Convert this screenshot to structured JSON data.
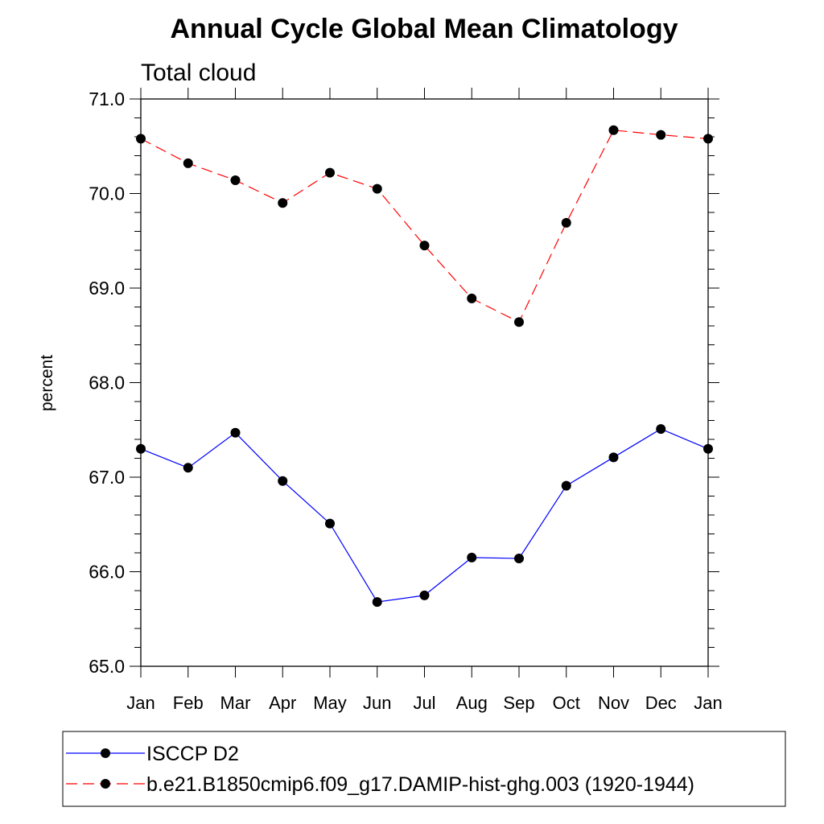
{
  "chart_data": {
    "type": "line",
    "title": "Annual Cycle Global Mean Climatology",
    "subtitle": "Total cloud",
    "xlabel": "",
    "ylabel": "percent",
    "categories": [
      "Jan",
      "Feb",
      "Mar",
      "Apr",
      "May",
      "Jun",
      "Jul",
      "Aug",
      "Sep",
      "Oct",
      "Nov",
      "Dec",
      "Jan"
    ],
    "ylim": [
      65.0,
      71.0
    ],
    "yticks": [
      "65.0",
      "66.0",
      "67.0",
      "68.0",
      "69.0",
      "70.0",
      "71.0"
    ],
    "grid": false,
    "legend_position": "bottom",
    "series": [
      {
        "name": "ISCCP D2",
        "color": "#0000ff",
        "dashed": false,
        "marker": "filled-circle",
        "values": [
          67.3,
          67.1,
          67.47,
          66.96,
          66.51,
          65.68,
          65.75,
          66.15,
          66.14,
          66.91,
          67.21,
          67.51,
          67.3
        ]
      },
      {
        "name": "b.e21.B1850cmip6.f09_g17.DAMIP-hist-ghg.003 (1920-1944)",
        "color": "#ff0000",
        "dashed": true,
        "marker": "filled-circle",
        "values": [
          70.58,
          70.32,
          70.14,
          69.9,
          70.22,
          70.05,
          69.45,
          68.89,
          68.64,
          69.69,
          70.67,
          70.62,
          70.58
        ]
      }
    ]
  }
}
